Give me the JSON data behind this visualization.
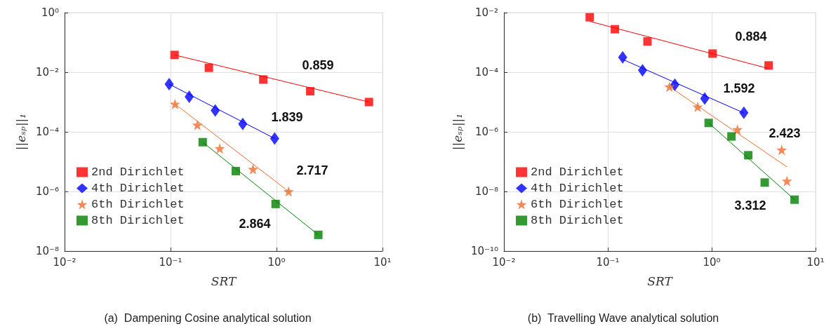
{
  "chart_data": [
    {
      "type": "scatter",
      "title": "(a)  Dampening Cosine analytical solution",
      "xlabel": "SRT",
      "ylabel": "||eₛₚ||₁",
      "log": "xy",
      "grid": true,
      "legend": "bottom left",
      "xlim": [
        0.01,
        10
      ],
      "xticks": [
        {
          "value": 0.01,
          "label": "10⁻²"
        },
        {
          "value": 0.1,
          "label": "10⁻¹"
        },
        {
          "value": 1,
          "label": "10⁰"
        },
        {
          "value": 10,
          "label": "10¹"
        }
      ],
      "ylim": [
        1e-08,
        1
      ],
      "yticks": [
        {
          "value": 1e-08,
          "label": "10⁻⁸"
        },
        {
          "value": 1e-06,
          "label": "10⁻⁶"
        },
        {
          "value": 0.0001,
          "label": "10⁻⁴"
        },
        {
          "value": 0.01,
          "label": "10⁻²"
        },
        {
          "value": 1,
          "label": "10⁰"
        }
      ],
      "series": [
        {
          "name": "2nd Dirichlet",
          "color": "#ff0000",
          "marker": "square",
          "x": [
            0.109,
            0.23,
            0.75,
            2.08,
            7.45
          ],
          "values": [
            0.038,
            0.0141,
            0.0057,
            0.0023,
            0.001
          ]
        },
        {
          "name": "4th Dirichlet",
          "color": "#0000ff",
          "marker": "diamond",
          "x": [
            0.097,
            0.15,
            0.264,
            0.48,
            0.96
          ],
          "values": [
            0.004,
            0.0015,
            0.00052,
            0.000185,
            6e-05
          ]
        },
        {
          "name": "6th Dirichlet",
          "color": "#ed6d2f",
          "marker": "star",
          "x": [
            0.11,
            0.179,
            0.291,
            0.6,
            1.3
          ],
          "values": [
            0.00086,
            0.00017,
            2.76e-05,
            5.6e-06,
            1e-06
          ]
        },
        {
          "name": "8th Dirichlet",
          "color": "#008000",
          "marker": "square",
          "x": [
            0.201,
            0.413,
            0.98,
            2.48
          ],
          "values": [
            4.5e-05,
            4.8e-06,
            3.8e-07,
            3.5e-08
          ]
        },
        {
          "type": "line",
          "color": "#ff0000",
          "marker": "none",
          "x": [
            0.109,
            7.45
          ],
          "values": [
            0.038,
            0.001
          ]
        },
        {
          "type": "line",
          "color": "#0000ff",
          "marker": "none",
          "x": [
            0.097,
            0.96
          ],
          "values": [
            0.004,
            6e-05
          ]
        },
        {
          "type": "line",
          "color": "#ed6d2f",
          "marker": "none",
          "x": [
            0.11,
            1.3
          ],
          "values": [
            0.00086,
            1e-06
          ]
        },
        {
          "type": "line",
          "color": "#008000",
          "marker": "none",
          "x": [
            0.201,
            2.48
          ],
          "values": [
            4.5e-05,
            3.5e-08
          ]
        }
      ],
      "annotations": [
        "0.859",
        "1.839",
        "2.717",
        "2.864"
      ]
    },
    {
      "type": "scatter",
      "title": "(b)  Travelling Wave analytical solution",
      "xlabel": "SRT",
      "ylabel": "||eₛₚ||₁",
      "log": "xy",
      "grid": true,
      "legend": "bottom left",
      "xlim": [
        0.01,
        10
      ],
      "xticks": [
        {
          "value": 0.01,
          "label": "10⁻²"
        },
        {
          "value": 0.1,
          "label": "10⁻¹"
        },
        {
          "value": 1,
          "label": "10⁰"
        },
        {
          "value": 10,
          "label": "10¹"
        }
      ],
      "ylim": [
        1e-10,
        0.01
      ],
      "yticks": [
        {
          "value": 1e-10,
          "label": "10⁻¹⁰"
        },
        {
          "value": 1e-08,
          "label": "10⁻⁸"
        },
        {
          "value": 1e-06,
          "label": "10⁻⁶"
        },
        {
          "value": 0.0001,
          "label": "10⁻⁴"
        },
        {
          "value": 0.01,
          "label": "10⁻²"
        }
      ],
      "series": [
        {
          "name": "2nd Dirichlet",
          "color": "#ff0000",
          "marker": "square",
          "x": [
            0.067,
            0.117,
            0.241,
            1.02,
            3.53
          ],
          "values": [
            0.007,
            0.00277,
            0.00108,
            0.000423,
            0.000169
          ]
        },
        {
          "name": "4th Dirichlet",
          "color": "#0000ff",
          "marker": "diamond",
          "x": [
            0.139,
            0.216,
            0.442,
            0.857,
            2.04
          ],
          "values": [
            0.000318,
            0.000116,
            3.84e-05,
            1.32e-05,
            4.4e-06
          ]
        },
        {
          "name": "6th Dirichlet",
          "color": "#ed6d2f",
          "marker": "star",
          "x": [
            0.392,
            0.733,
            1.77,
            4.72,
            5.3
          ],
          "values": [
            3.27e-05,
            6.9e-06,
            1.2e-06,
            2.49e-07,
            2.25e-08
          ]
        },
        {
          "name": "8th Dirichlet",
          "color": "#008000",
          "marker": "square",
          "x": [
            0.935,
            1.55,
            2.25,
            3.24,
            6.28
          ],
          "values": [
            1.99e-06,
            7e-07,
            1.64e-07,
            1.99e-08,
            5.3e-09
          ]
        },
        {
          "type": "line",
          "color": "#ff0000",
          "marker": "none",
          "x": [
            0.067,
            3.53
          ],
          "values": [
            0.0051,
            0.000133
          ]
        },
        {
          "type": "line",
          "color": "#0000ff",
          "marker": "none",
          "x": [
            0.139,
            2.04
          ],
          "values": [
            0.00027,
            4.3e-06
          ]
        },
        {
          "type": "line",
          "color": "#ed6d2f",
          "marker": "none",
          "x": [
            0.392,
            5.3
          ],
          "values": [
            3.27e-05,
            6.67e-08
          ]
        },
        {
          "type": "line",
          "color": "#008000",
          "marker": "none",
          "x": [
            0.935,
            6.28
          ],
          "values": [
            1.99e-06,
            5.3e-09
          ]
        }
      ],
      "annotations": [
        "0.884",
        "1.592",
        "2.423",
        "3.312"
      ]
    }
  ]
}
